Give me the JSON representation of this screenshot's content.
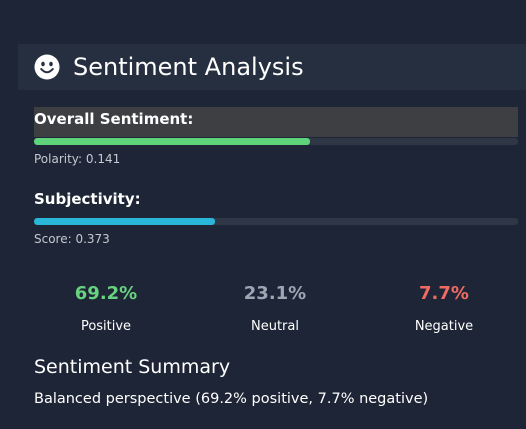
{
  "header": {
    "title": "Sentiment Analysis",
    "icon": "smiley-face-icon"
  },
  "overall": {
    "label": "Overall Sentiment:",
    "polarity_text": "Polarity: 0.141",
    "fill_fraction": 0.57,
    "color": "#5fd47a"
  },
  "subjectivity": {
    "label": "Subjectivity:",
    "score_text": "Score: 0.373",
    "fill_fraction": 0.373,
    "color": "#29b6d9"
  },
  "stats": [
    {
      "value": "69.2%",
      "label": "Positive",
      "color": "#67d37e"
    },
    {
      "value": "23.1%",
      "label": "Neutral",
      "color": "#9ea6b3"
    },
    {
      "value": "7.7%",
      "label": "Negative",
      "color": "#f06a64"
    }
  ],
  "summary": {
    "title": "Sentiment Summary",
    "text": "Balanced perspective (69.2% positive, 7.7% negative)"
  }
}
